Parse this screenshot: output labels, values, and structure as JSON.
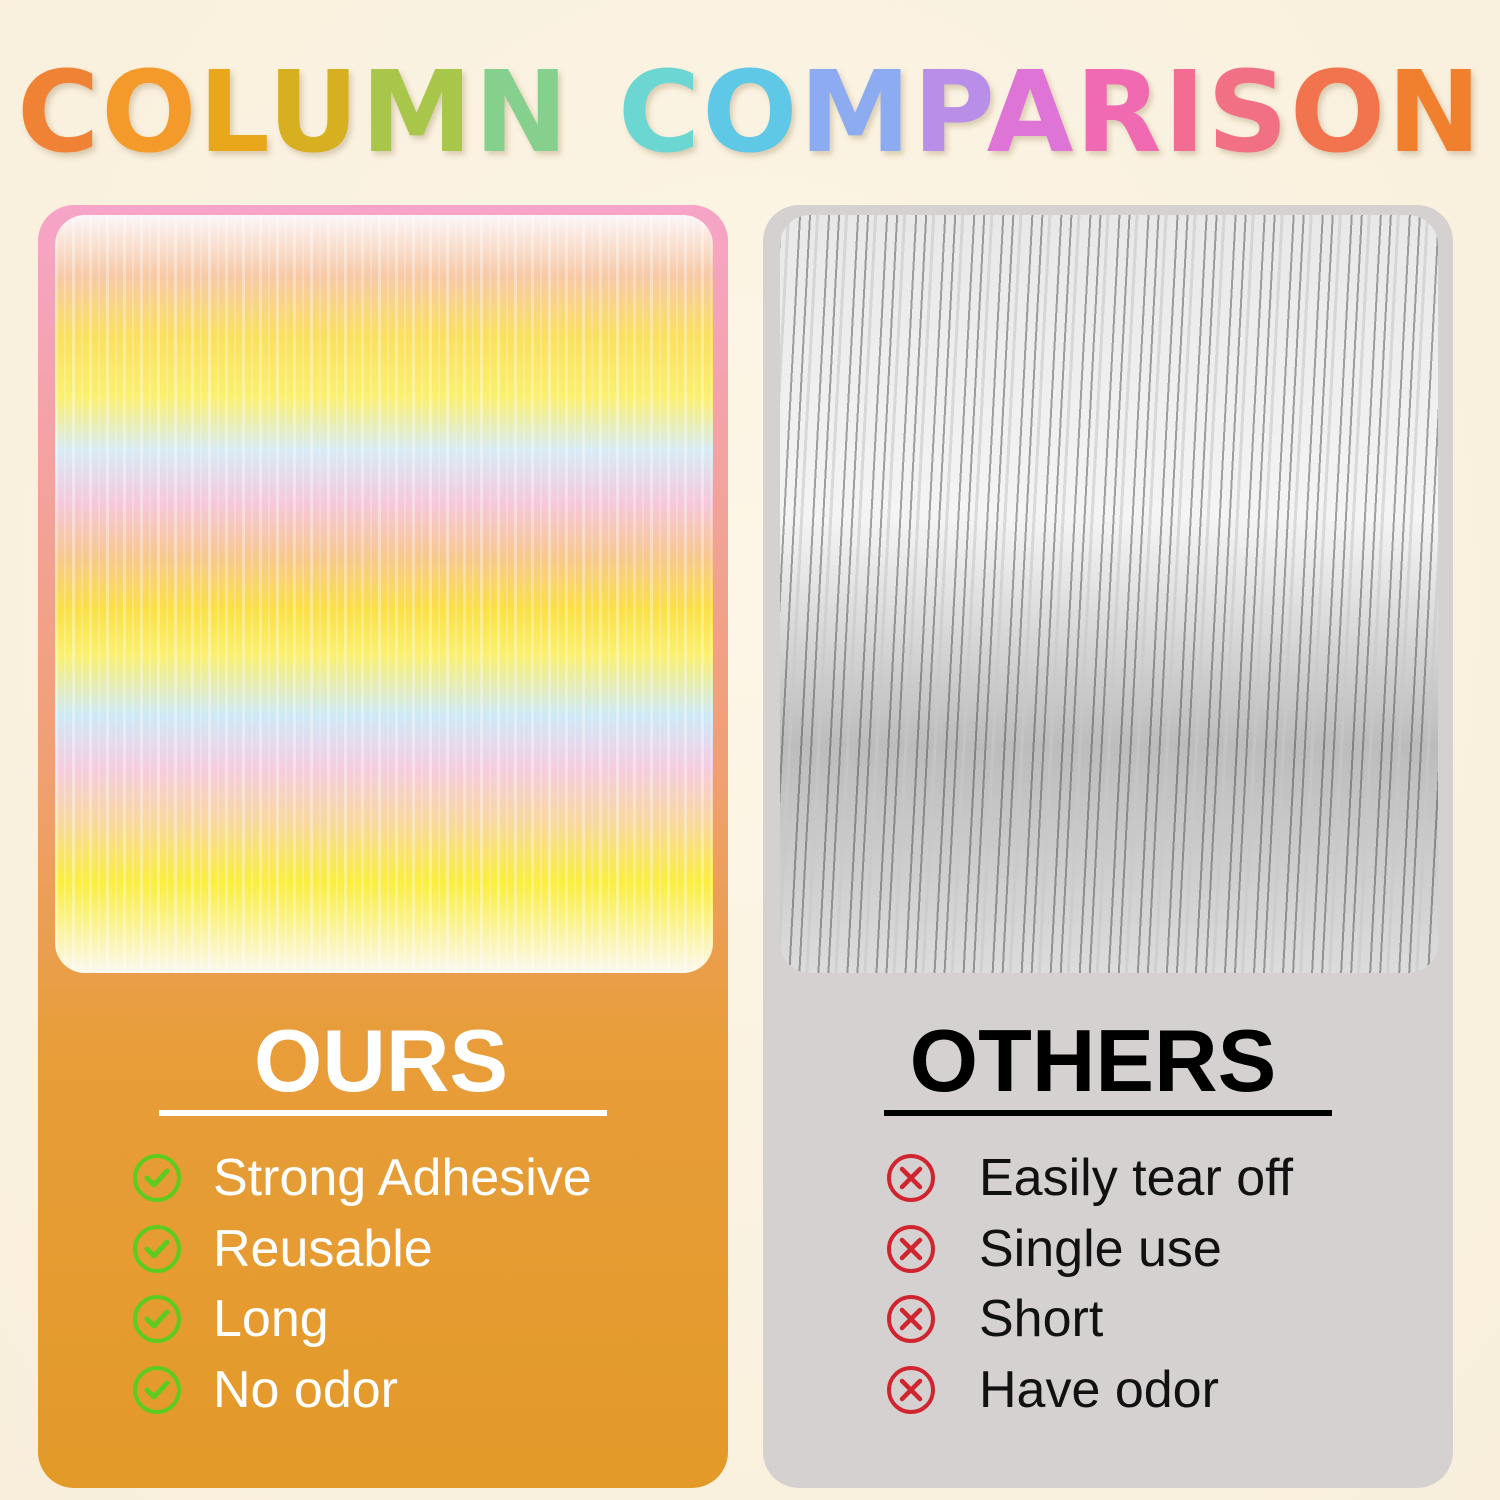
{
  "title": {
    "word1": [
      "C",
      "O",
      "L",
      "U",
      "M",
      "N"
    ],
    "word2": [
      "C",
      "O",
      "M",
      "P",
      "A",
      "R",
      "I",
      "S",
      "O",
      "N"
    ],
    "colors1": [
      "#f08236",
      "#f39a2a",
      "#e9a71c",
      "#d6b020",
      "#a8c64a",
      "#86d08e"
    ],
    "colors2": [
      "#6cd6d2",
      "#5ec8e6",
      "#8cabf0",
      "#b98ee8",
      "#de74d6",
      "#f06ab2",
      "#f26c94",
      "#f27084",
      "#f2744e",
      "#f1802e"
    ]
  },
  "ours": {
    "heading": "OURS",
    "icon": "check-circle-icon",
    "icon_color": "#5ccc1e",
    "features": [
      "Strong Adhesive",
      "Reusable",
      "Long",
      "No odor"
    ]
  },
  "others": {
    "heading": "OTHERS",
    "icon": "x-circle-icon",
    "icon_color": "#d0252f",
    "features": [
      "Easily tear off",
      "Single use",
      "Short",
      "Have odor"
    ]
  }
}
